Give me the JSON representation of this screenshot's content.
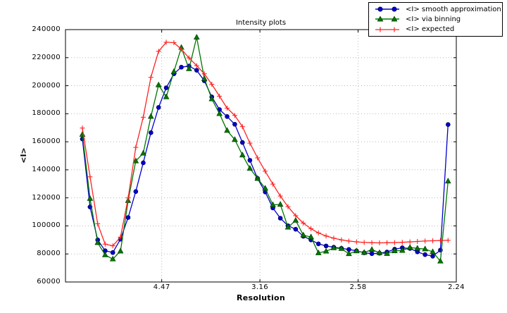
{
  "figure": {
    "background": "#ffffff",
    "plot_border_color": "#000000",
    "grid_color": "#b8b8b8"
  },
  "legend": {
    "position": "top-right",
    "items": [
      {
        "label": "<I> smooth approximation",
        "marker": "circle",
        "color": "#0000cc"
      },
      {
        "label": "<I> via binning",
        "marker": "triangle-up",
        "color": "#007700"
      },
      {
        "label": "<I> expected",
        "marker": "plus",
        "color": "#ff2222"
      }
    ]
  },
  "chart_data": {
    "type": "line",
    "title": "Intensity plots",
    "xlabel": "Resolution",
    "ylabel": "<I>",
    "ylim": [
      60000,
      240000
    ],
    "yticks": [
      60000,
      80000,
      100000,
      120000,
      140000,
      160000,
      180000,
      200000,
      220000,
      240000
    ],
    "grid": true,
    "legend_position": "top-right",
    "x_axis": {
      "note": "resolution axis, ticks equally spaced in 1/d^2",
      "range": [
        0.001,
        0.2
      ],
      "ticks": [
        {
          "s": 0.05,
          "label": "4.47"
        },
        {
          "s": 0.1,
          "label": "3.16"
        },
        {
          "s": 0.15,
          "label": "2.58"
        },
        {
          "s": 0.2,
          "label": "2.24"
        }
      ]
    },
    "x_inv_d_squared": [
      0.0096,
      0.0135,
      0.0174,
      0.0212,
      0.0251,
      0.029,
      0.0329,
      0.0368,
      0.0406,
      0.0445,
      0.0484,
      0.0523,
      0.0562,
      0.06,
      0.0639,
      0.0678,
      0.0717,
      0.0755,
      0.0794,
      0.0833,
      0.0872,
      0.0911,
      0.0949,
      0.0988,
      0.1027,
      0.1066,
      0.1104,
      0.1143,
      0.1182,
      0.1221,
      0.126,
      0.1298,
      0.1337,
      0.1376,
      0.1415,
      0.1453,
      0.1492,
      0.1531,
      0.157,
      0.1609,
      0.1647,
      0.1686,
      0.1725,
      0.1764,
      0.1802,
      0.1841,
      0.188,
      0.1919,
      0.1958
    ],
    "series": [
      {
        "name": "<I> smooth approximation",
        "color": "#0000cc",
        "marker": "circle",
        "values": [
          162000,
          113500,
          90000,
          82300,
          81000,
          90500,
          106000,
          124500,
          145000,
          166500,
          184500,
          198500,
          208500,
          213200,
          214000,
          211000,
          203500,
          192000,
          183000,
          178000,
          172500,
          159500,
          146800,
          133800,
          124200,
          112800,
          105500,
          100100,
          97600,
          92600,
          90000,
          87200,
          85700,
          84800,
          84000,
          83200,
          82200,
          80800,
          80200,
          80500,
          81400,
          83400,
          84400,
          83900,
          81500,
          79500,
          78400,
          82700,
          172300
        ]
      },
      {
        "name": "<I> via binning",
        "color": "#007700",
        "marker": "triangle-up",
        "values": [
          165200,
          119500,
          88000,
          79300,
          76300,
          82000,
          118000,
          146300,
          151800,
          178000,
          200500,
          192000,
          210000,
          227200,
          212000,
          234500,
          205000,
          190500,
          180000,
          168000,
          161500,
          150500,
          141000,
          133800,
          126800,
          115000,
          115300,
          99000,
          103900,
          93400,
          92100,
          80700,
          81900,
          84300,
          83800,
          80100,
          82100,
          81000,
          83100,
          80800,
          80200,
          82200,
          82400,
          84600,
          84000,
          83500,
          81500,
          74800,
          131900
        ]
      },
      {
        "name": "<I> expected",
        "color": "#ff2222",
        "marker": "plus",
        "values": [
          169800,
          135000,
          101500,
          87000,
          85800,
          92000,
          120000,
          156000,
          177500,
          206000,
          224500,
          231000,
          230700,
          226000,
          219800,
          214300,
          208500,
          201000,
          192500,
          184000,
          178800,
          170800,
          159000,
          148500,
          139000,
          129800,
          121300,
          113700,
          107300,
          102000,
          98000,
          95000,
          92800,
          91200,
          90000,
          89200,
          88600,
          88200,
          88000,
          87900,
          88000,
          88100,
          88300,
          88600,
          88900,
          89200,
          89400,
          89600,
          89700
        ]
      }
    ]
  }
}
